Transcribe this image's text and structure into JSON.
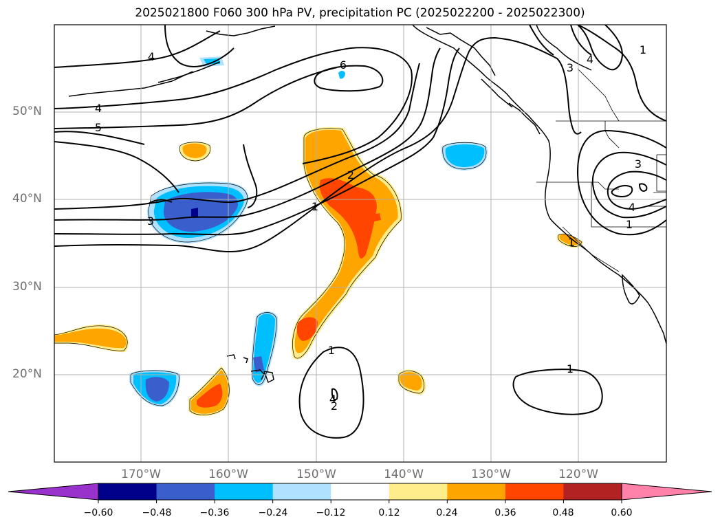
{
  "title": "2025021800 F060 300 hPa PV, precipitation PC (2025022200 - 2025022300)",
  "map": {
    "lat_labels": [
      "50°N",
      "40°N",
      "30°N",
      "20°N"
    ],
    "lon_labels": [
      "170°W",
      "160°W",
      "150°W",
      "140°W",
      "130°W",
      "120°W"
    ],
    "contour_labels": [
      "4",
      "4",
      "5",
      "3",
      "6",
      "2",
      "1",
      "3",
      "4",
      "1",
      "3",
      "4",
      "1",
      "1",
      "4",
      "2",
      "1",
      "1"
    ],
    "colors": {
      "lt_-0.60": "#9932cc",
      "-0.60_-0.48": "#00008b",
      "-0.48_-0.36": "#3a5fcd",
      "-0.36_-0.24": "#00bfff",
      "-0.24_-0.12": "#b0e2ff",
      "-0.12_0.12": "#ffffff",
      "0.12_0.24": "#ffec8b",
      "0.24_0.36": "#ffa500",
      "0.36_0.48": "#ff4500",
      "0.48_0.60": "#b22222",
      "gt_0.60": "#ff82ab"
    }
  },
  "colorbar": {
    "ticks": [
      "−0.60",
      "−0.48",
      "−0.36",
      "−0.24",
      "−0.12",
      "0.12",
      "0.24",
      "0.36",
      "0.48",
      "0.60"
    ],
    "fills": [
      "#9932cc",
      "#00008b",
      "#3a5fcd",
      "#00bfff",
      "#b0e2ff",
      "#ffffff",
      "#ffec8b",
      "#ffa500",
      "#ff4500",
      "#b22222",
      "#ff82ab"
    ]
  }
}
